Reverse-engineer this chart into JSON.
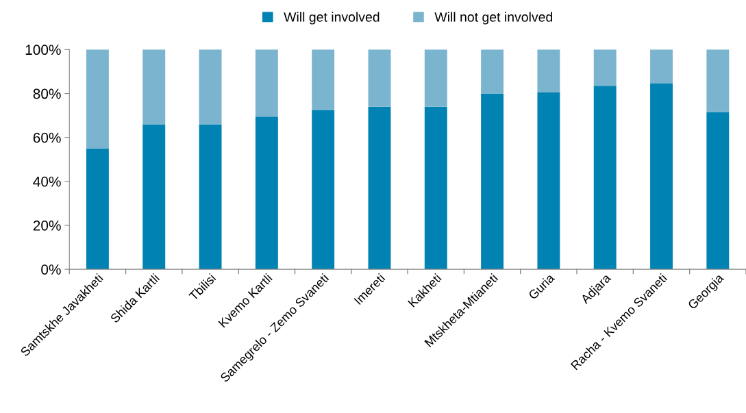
{
  "chart_data": {
    "type": "bar",
    "stacked": true,
    "categories": [
      "Samtskhe Javakheti",
      "Shida Kartli",
      "Tbilisi",
      "Kvemo Kartli",
      "Samegrelo - Zemo Svaneti",
      "Imereti",
      "Kakheti",
      "Mtskheta-Mtianeti",
      "Guria",
      "Adjara",
      "Racha - Kvemo Svaneti",
      "Georgia"
    ],
    "series": [
      {
        "name": "Will get involved",
        "color": "#0083b3",
        "values": [
          55,
          66,
          66,
          69.5,
          72.5,
          74,
          74,
          80,
          80.5,
          83.5,
          84.5,
          71.5
        ]
      },
      {
        "name": "Will not get involved",
        "color": "#7ab4cf",
        "values": [
          45,
          34,
          34,
          30.5,
          27.5,
          26,
          26,
          20,
          19.5,
          16.5,
          15.5,
          28.5
        ]
      }
    ],
    "ylim": [
      0,
      100
    ],
    "yticks": [
      {
        "value": 0,
        "label": "0%"
      },
      {
        "value": 20,
        "label": "20%"
      },
      {
        "value": 40,
        "label": "40%"
      },
      {
        "value": 60,
        "label": "60%"
      },
      {
        "value": 80,
        "label": "80%"
      },
      {
        "value": 100,
        "label": "100%"
      }
    ],
    "grid": false,
    "legend": "top"
  }
}
